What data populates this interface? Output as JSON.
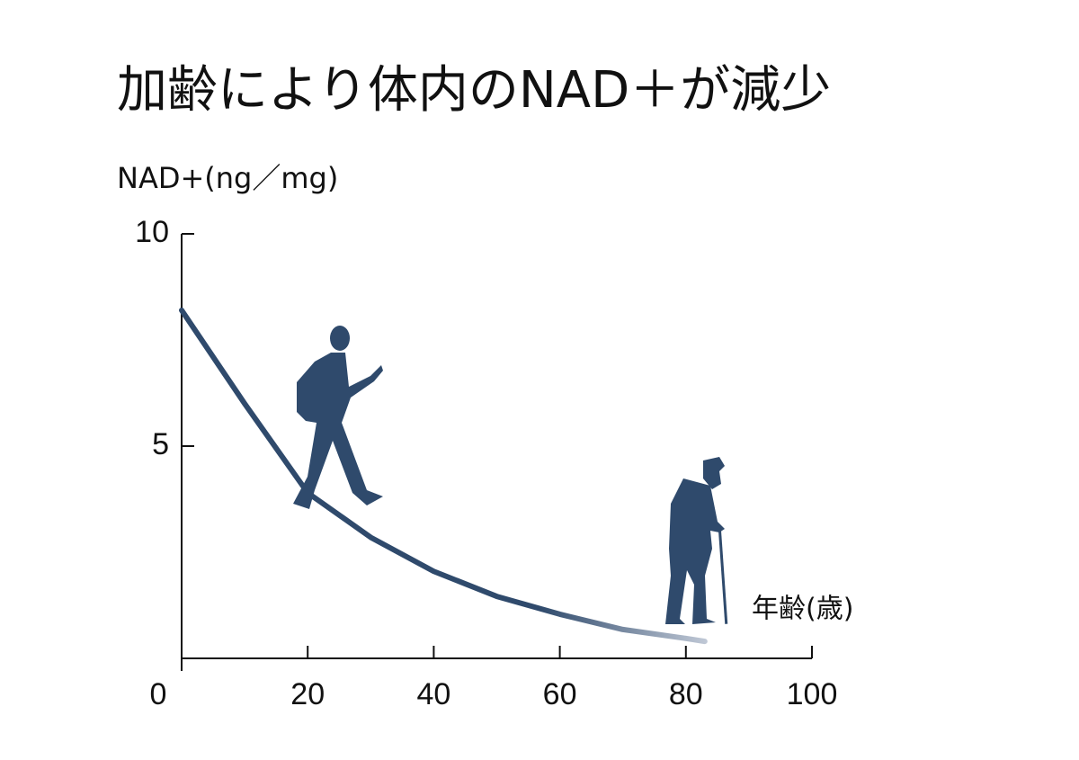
{
  "chart_data": {
    "type": "line",
    "title": "加齢により体内のNAD＋が減少",
    "y_label": "NAD+(ng／mg)",
    "x_label": "年齢(歳)",
    "x": [
      0,
      10,
      20,
      30,
      40,
      50,
      60,
      70,
      80,
      83
    ],
    "series": [
      {
        "name": "NAD+",
        "color": "#2f4a6c",
        "values": [
          8.2,
          6.0,
          3.9,
          2.85,
          2.05,
          1.46,
          1.04,
          0.68,
          0.47,
          0.4
        ]
      }
    ],
    "xlim": [
      0,
      100
    ],
    "xticks": [
      0,
      20,
      40,
      60,
      80,
      100
    ],
    "ylim": [
      0,
      10
    ],
    "yticks": [
      5,
      10
    ]
  }
}
